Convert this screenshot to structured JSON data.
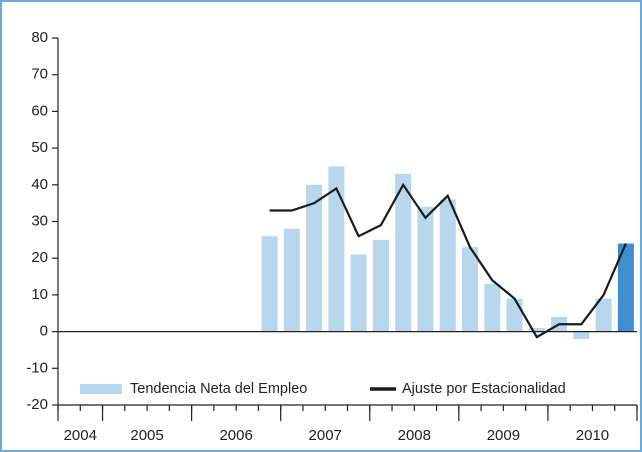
{
  "chart_data": {
    "type": "bar",
    "categories": [
      null,
      null,
      null,
      null,
      null,
      null,
      null,
      null,
      null,
      null,
      null,
      null,
      null,
      null,
      null,
      null,
      null,
      null,
      null,
      null,
      null,
      null,
      null,
      null,
      null,
      null
    ],
    "year_labels": [
      {
        "label": "2004",
        "quarters": 2
      },
      {
        "label": "2005",
        "quarters": 4
      },
      {
        "label": "2006",
        "quarters": 4
      },
      {
        "label": "2007",
        "quarters": 4
      },
      {
        "label": "2008",
        "quarters": 4
      },
      {
        "label": "2009",
        "quarters": 4
      },
      {
        "label": "2010",
        "quarters": 4
      }
    ],
    "series": [
      {
        "name": "Tendencia Neta del Empleo",
        "type": "bar",
        "color": "#b9d7ec",
        "highlight": {
          "index": 25,
          "color": "#3f8fd0"
        },
        "values": [
          null,
          null,
          null,
          null,
          null,
          null,
          null,
          null,
          null,
          26,
          28,
          40,
          45,
          21,
          25,
          43,
          34,
          36,
          23,
          13,
          9,
          1,
          4,
          -2,
          9,
          24
        ]
      },
      {
        "name": "Ajuste por Estacionalidad",
        "type": "line",
        "color": "#1a1a1a",
        "values": [
          null,
          null,
          null,
          null,
          null,
          null,
          null,
          null,
          null,
          33,
          33,
          35,
          39,
          26,
          29,
          40,
          31,
          37,
          23,
          14,
          9,
          -1.5,
          2,
          2,
          10,
          24
        ]
      }
    ],
    "ylim": [
      -20,
      80
    ],
    "yticks": [
      -20,
      -10,
      0,
      10,
      20,
      30,
      40,
      50,
      60,
      70,
      80
    ],
    "legend": "bottom"
  }
}
